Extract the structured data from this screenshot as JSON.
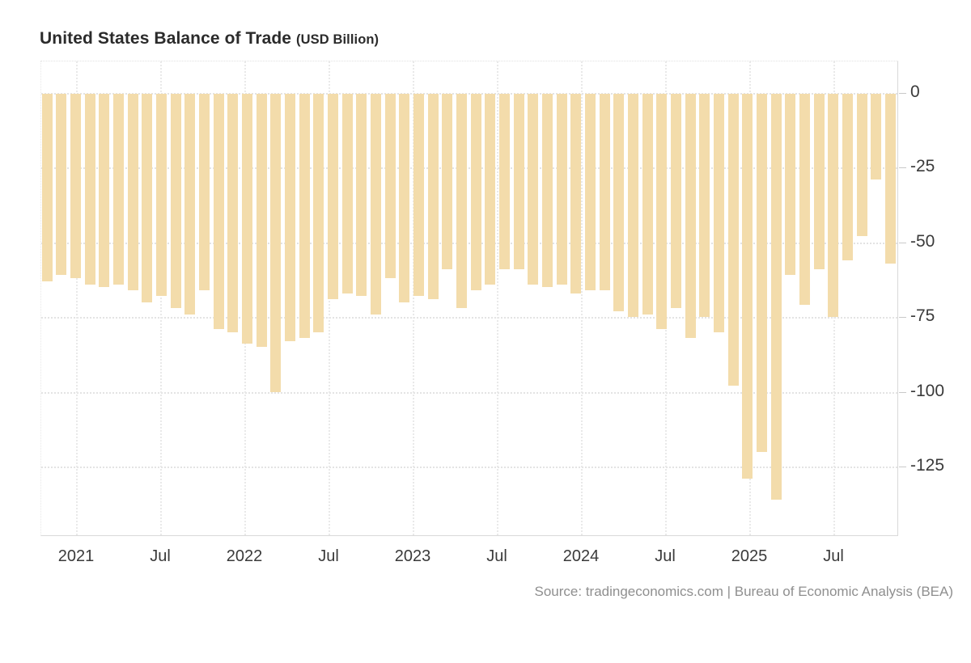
{
  "header": {
    "title": "United States Balance of Trade",
    "subtitle": "(USD Billion)"
  },
  "footer": {
    "source": "Source: tradingeconomics.com | Bureau of Economic Analysis (BEA)"
  },
  "chart_data": {
    "type": "bar",
    "title": "United States Balance of Trade",
    "subtitle": "(USD Billion)",
    "ylabel": "USD Billion",
    "xlabel": "",
    "grid": true,
    "legend": "none",
    "axis_side": "right",
    "ylim": [
      -148.5,
      10.5
    ],
    "bar_color": "#f3dcab",
    "background_color": "#ffffff",
    "gridline_color": "#e3e3e3",
    "y_ticks": [
      0,
      -25,
      -50,
      -75,
      -100,
      -125
    ],
    "x_tick_labels": [
      "2021",
      "Jul",
      "2022",
      "Jul",
      "2023",
      "Jul",
      "2024",
      "Jul",
      "2025",
      "Jul"
    ],
    "categories": [
      "Dec 2020",
      "Jan 2021",
      "Feb 2021",
      "Mar 2021",
      "Apr 2021",
      "May 2021",
      "Jun 2021",
      "Jul 2021",
      "Aug 2021",
      "Sep 2021",
      "Oct 2021",
      "Nov 2021",
      "Dec 2021",
      "Jan 2022",
      "Feb 2022",
      "Mar 2022",
      "Apr 2022",
      "May 2022",
      "Jun 2022",
      "Jul 2022",
      "Aug 2022",
      "Sep 2022",
      "Oct 2022",
      "Nov 2022",
      "Dec 2022",
      "Jan 2023",
      "Feb 2023",
      "Mar 2023",
      "Apr 2023",
      "May 2023",
      "Jun 2023",
      "Jul 2023",
      "Aug 2023",
      "Sep 2023",
      "Oct 2023",
      "Nov 2023",
      "Dec 2023",
      "Jan 2024",
      "Feb 2024",
      "Mar 2024",
      "Apr 2024",
      "May 2024",
      "Jun 2024",
      "Jul 2024",
      "Aug 2024",
      "Sep 2024",
      "Oct 2024",
      "Nov 2024",
      "Dec 2024",
      "Jan 2025",
      "Feb 2025",
      "Mar 2025",
      "Apr 2025",
      "May 2025",
      "Jun 2025",
      "Jul 2025",
      "Aug 2025",
      "Sep 2025",
      "Oct 2025",
      "Nov 2025"
    ],
    "values": [
      -63,
      -61,
      -62,
      -64,
      -65,
      -64,
      -66,
      -70,
      -68,
      -72,
      -74,
      -66,
      -79,
      -80,
      -84,
      -85,
      -100,
      -83,
      -82,
      -80,
      -69,
      -67,
      -68,
      -74,
      -62,
      -70,
      -68,
      -69,
      -59,
      -72,
      -66,
      -64,
      -59,
      -59,
      -64,
      -65,
      -64,
      -67,
      -66,
      -66,
      -73,
      -75,
      -74,
      -79,
      -72,
      -82,
      -75,
      -80,
      -98,
      -129,
      -120,
      -136,
      -61,
      -71,
      -59,
      -75,
      -56,
      -48,
      -29,
      -57
    ]
  }
}
